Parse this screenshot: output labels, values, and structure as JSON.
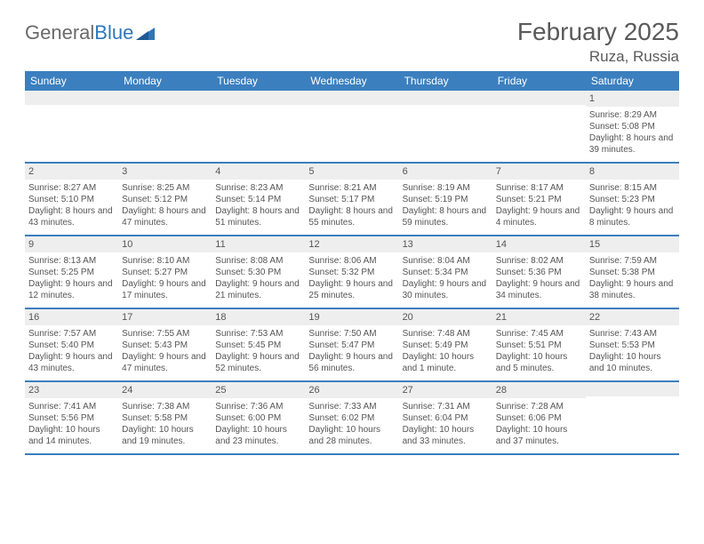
{
  "brand": {
    "part1": "General",
    "part2": "Blue"
  },
  "title": "February 2025",
  "location": "Ruza, Russia",
  "colors": {
    "header_bar": "#3b7fbf",
    "band": "#eeeeee",
    "text": "#555555",
    "brand_gray": "#6a6a6a",
    "brand_blue": "#2f77b8",
    "background": "#ffffff"
  },
  "weekdays": [
    "Sunday",
    "Monday",
    "Tuesday",
    "Wednesday",
    "Thursday",
    "Friday",
    "Saturday"
  ],
  "weeks": [
    [
      {
        "blank": true
      },
      {
        "blank": true
      },
      {
        "blank": true
      },
      {
        "blank": true
      },
      {
        "blank": true
      },
      {
        "blank": true
      },
      {
        "day": "1",
        "sunrise": "Sunrise: 8:29 AM",
        "sunset": "Sunset: 5:08 PM",
        "daylight": "Daylight: 8 hours and 39 minutes."
      }
    ],
    [
      {
        "day": "2",
        "sunrise": "Sunrise: 8:27 AM",
        "sunset": "Sunset: 5:10 PM",
        "daylight": "Daylight: 8 hours and 43 minutes."
      },
      {
        "day": "3",
        "sunrise": "Sunrise: 8:25 AM",
        "sunset": "Sunset: 5:12 PM",
        "daylight": "Daylight: 8 hours and 47 minutes."
      },
      {
        "day": "4",
        "sunrise": "Sunrise: 8:23 AM",
        "sunset": "Sunset: 5:14 PM",
        "daylight": "Daylight: 8 hours and 51 minutes."
      },
      {
        "day": "5",
        "sunrise": "Sunrise: 8:21 AM",
        "sunset": "Sunset: 5:17 PM",
        "daylight": "Daylight: 8 hours and 55 minutes."
      },
      {
        "day": "6",
        "sunrise": "Sunrise: 8:19 AM",
        "sunset": "Sunset: 5:19 PM",
        "daylight": "Daylight: 8 hours and 59 minutes."
      },
      {
        "day": "7",
        "sunrise": "Sunrise: 8:17 AM",
        "sunset": "Sunset: 5:21 PM",
        "daylight": "Daylight: 9 hours and 4 minutes."
      },
      {
        "day": "8",
        "sunrise": "Sunrise: 8:15 AM",
        "sunset": "Sunset: 5:23 PM",
        "daylight": "Daylight: 9 hours and 8 minutes."
      }
    ],
    [
      {
        "day": "9",
        "sunrise": "Sunrise: 8:13 AM",
        "sunset": "Sunset: 5:25 PM",
        "daylight": "Daylight: 9 hours and 12 minutes."
      },
      {
        "day": "10",
        "sunrise": "Sunrise: 8:10 AM",
        "sunset": "Sunset: 5:27 PM",
        "daylight": "Daylight: 9 hours and 17 minutes."
      },
      {
        "day": "11",
        "sunrise": "Sunrise: 8:08 AM",
        "sunset": "Sunset: 5:30 PM",
        "daylight": "Daylight: 9 hours and 21 minutes."
      },
      {
        "day": "12",
        "sunrise": "Sunrise: 8:06 AM",
        "sunset": "Sunset: 5:32 PM",
        "daylight": "Daylight: 9 hours and 25 minutes."
      },
      {
        "day": "13",
        "sunrise": "Sunrise: 8:04 AM",
        "sunset": "Sunset: 5:34 PM",
        "daylight": "Daylight: 9 hours and 30 minutes."
      },
      {
        "day": "14",
        "sunrise": "Sunrise: 8:02 AM",
        "sunset": "Sunset: 5:36 PM",
        "daylight": "Daylight: 9 hours and 34 minutes."
      },
      {
        "day": "15",
        "sunrise": "Sunrise: 7:59 AM",
        "sunset": "Sunset: 5:38 PM",
        "daylight": "Daylight: 9 hours and 38 minutes."
      }
    ],
    [
      {
        "day": "16",
        "sunrise": "Sunrise: 7:57 AM",
        "sunset": "Sunset: 5:40 PM",
        "daylight": "Daylight: 9 hours and 43 minutes."
      },
      {
        "day": "17",
        "sunrise": "Sunrise: 7:55 AM",
        "sunset": "Sunset: 5:43 PM",
        "daylight": "Daylight: 9 hours and 47 minutes."
      },
      {
        "day": "18",
        "sunrise": "Sunrise: 7:53 AM",
        "sunset": "Sunset: 5:45 PM",
        "daylight": "Daylight: 9 hours and 52 minutes."
      },
      {
        "day": "19",
        "sunrise": "Sunrise: 7:50 AM",
        "sunset": "Sunset: 5:47 PM",
        "daylight": "Daylight: 9 hours and 56 minutes."
      },
      {
        "day": "20",
        "sunrise": "Sunrise: 7:48 AM",
        "sunset": "Sunset: 5:49 PM",
        "daylight": "Daylight: 10 hours and 1 minute."
      },
      {
        "day": "21",
        "sunrise": "Sunrise: 7:45 AM",
        "sunset": "Sunset: 5:51 PM",
        "daylight": "Daylight: 10 hours and 5 minutes."
      },
      {
        "day": "22",
        "sunrise": "Sunrise: 7:43 AM",
        "sunset": "Sunset: 5:53 PM",
        "daylight": "Daylight: 10 hours and 10 minutes."
      }
    ],
    [
      {
        "day": "23",
        "sunrise": "Sunrise: 7:41 AM",
        "sunset": "Sunset: 5:56 PM",
        "daylight": "Daylight: 10 hours and 14 minutes."
      },
      {
        "day": "24",
        "sunrise": "Sunrise: 7:38 AM",
        "sunset": "Sunset: 5:58 PM",
        "daylight": "Daylight: 10 hours and 19 minutes."
      },
      {
        "day": "25",
        "sunrise": "Sunrise: 7:36 AM",
        "sunset": "Sunset: 6:00 PM",
        "daylight": "Daylight: 10 hours and 23 minutes."
      },
      {
        "day": "26",
        "sunrise": "Sunrise: 7:33 AM",
        "sunset": "Sunset: 6:02 PM",
        "daylight": "Daylight: 10 hours and 28 minutes."
      },
      {
        "day": "27",
        "sunrise": "Sunrise: 7:31 AM",
        "sunset": "Sunset: 6:04 PM",
        "daylight": "Daylight: 10 hours and 33 minutes."
      },
      {
        "day": "28",
        "sunrise": "Sunrise: 7:28 AM",
        "sunset": "Sunset: 6:06 PM",
        "daylight": "Daylight: 10 hours and 37 minutes."
      },
      {
        "blank": true
      }
    ]
  ]
}
